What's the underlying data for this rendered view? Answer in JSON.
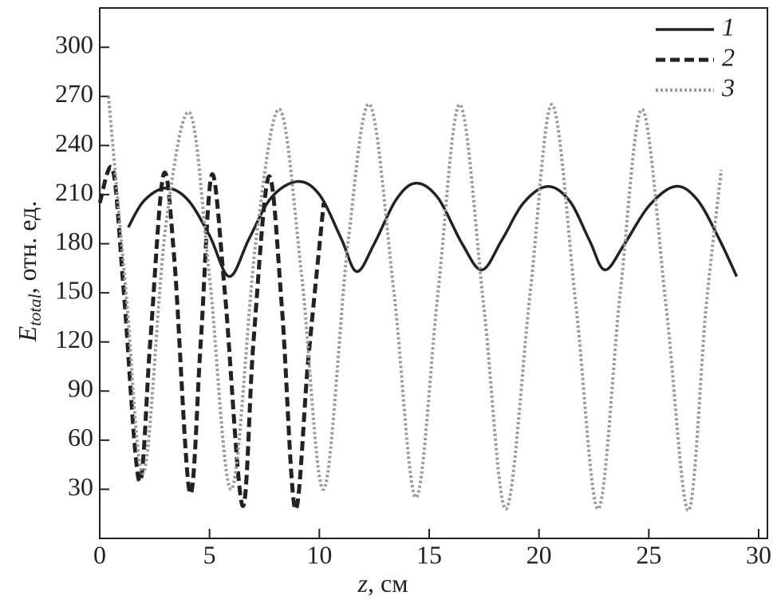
{
  "chart_data": {
    "type": "line",
    "xlabel": [
      "z",
      ", см"
    ],
    "ylabel": [
      "E",
      "total",
      ", отн. ед."
    ],
    "xlim": [
      0,
      30.4
    ],
    "ylim": [
      0,
      324
    ],
    "xticks": [
      0,
      5,
      10,
      15,
      20,
      25,
      30
    ],
    "yticks": [
      30,
      60,
      90,
      120,
      150,
      180,
      210,
      240,
      270,
      300
    ],
    "legend": "top-right",
    "series": [
      {
        "name": "1",
        "color": "#222222",
        "dash": "solid",
        "x": [
          1.3,
          2.0,
          3.0,
          4.0,
          5.0,
          5.9,
          6.8,
          7.8,
          9.0,
          10.0,
          11.0,
          11.7,
          12.5,
          13.5,
          14.4,
          15.4,
          16.5,
          17.4,
          18.3,
          19.3,
          20.4,
          21.4,
          22.3,
          23.0,
          23.9,
          25.0,
          26.2,
          27.2,
          28.2,
          29.0
        ],
        "values": [
          190,
          206,
          214,
          207,
          185,
          160,
          183,
          208,
          218,
          210,
          183,
          163,
          180,
          207,
          217,
          208,
          180,
          164,
          182,
          205,
          215,
          206,
          182,
          164,
          180,
          203,
          215,
          207,
          183,
          160
        ]
      },
      {
        "name": "2",
        "color": "#222222",
        "dash": "dashed",
        "x": [
          0,
          0.6,
          1.1,
          1.8,
          2.3,
          2.9,
          3.4,
          4.1,
          4.6,
          5.1,
          5.7,
          6.5,
          7.0,
          7.7,
          8.3,
          8.9,
          9.5,
          10.2
        ],
        "values": [
          205,
          225,
          150,
          35,
          120,
          222,
          170,
          28,
          120,
          222,
          150,
          20,
          120,
          221,
          140,
          18,
          110,
          205
        ]
      },
      {
        "name": "3",
        "color": "#999999",
        "dash": "dotted",
        "x": [
          0.4,
          1.2,
          2.0,
          3.0,
          4.1,
          5.0,
          6.0,
          7.1,
          8.2,
          9.2,
          10.2,
          11.3,
          12.3,
          13.4,
          14.4,
          15.4,
          16.4,
          17.5,
          18.5,
          19.6,
          20.6,
          21.7,
          22.7,
          23.7,
          24.7,
          25.8,
          26.8,
          27.6,
          28.3
        ],
        "values": [
          270,
          150,
          40,
          190,
          260,
          160,
          30,
          180,
          262,
          160,
          30,
          180,
          265,
          150,
          25,
          150,
          265,
          140,
          18,
          150,
          265,
          140,
          18,
          150,
          262,
          140,
          17,
          140,
          225
        ]
      }
    ]
  }
}
